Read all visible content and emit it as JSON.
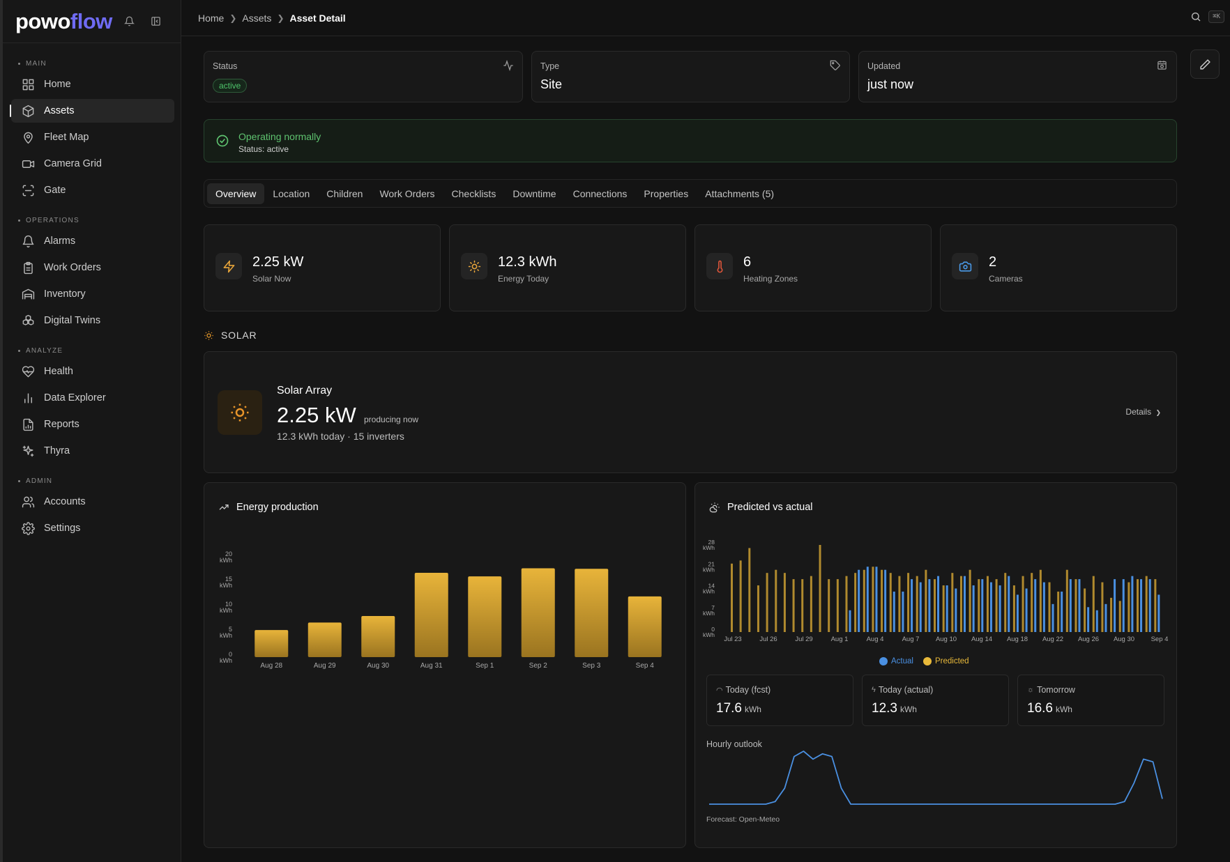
{
  "sidebar": {
    "logo_part1": "powo",
    "logo_part2": "flow",
    "sections": [
      {
        "title": "MAIN",
        "items": [
          {
            "label": "Home",
            "icon": "home-grid-icon"
          },
          {
            "label": "Assets",
            "icon": "cube-icon",
            "active": true
          },
          {
            "label": "Fleet Map",
            "icon": "map-pin-icon"
          },
          {
            "label": "Camera Grid",
            "icon": "video-icon"
          },
          {
            "label": "Gate",
            "icon": "scan-icon"
          }
        ]
      },
      {
        "title": "OPERATIONS",
        "items": [
          {
            "label": "Alarms",
            "icon": "bell-icon"
          },
          {
            "label": "Work Orders",
            "icon": "clipboard-icon"
          },
          {
            "label": "Inventory",
            "icon": "warehouse-icon"
          },
          {
            "label": "Digital Twins",
            "icon": "boxes-icon"
          }
        ]
      },
      {
        "title": "ANALYZE",
        "items": [
          {
            "label": "Health",
            "icon": "heart-pulse-icon"
          },
          {
            "label": "Data Explorer",
            "icon": "bar-chart-icon"
          },
          {
            "label": "Reports",
            "icon": "file-chart-icon"
          },
          {
            "label": "Thyra",
            "icon": "sparkles-icon"
          }
        ]
      },
      {
        "title": "ADMIN",
        "items": [
          {
            "label": "Accounts",
            "icon": "users-icon"
          },
          {
            "label": "Settings",
            "icon": "gear-icon"
          }
        ]
      }
    ]
  },
  "header": {
    "breadcrumbs": [
      "Home",
      "Assets",
      "Asset Detail"
    ],
    "shortcut": "⌘K"
  },
  "info_cards": {
    "status": {
      "label": "Status",
      "value": "active"
    },
    "type": {
      "label": "Type",
      "value": "Site"
    },
    "updated": {
      "label": "Updated",
      "value": "just now"
    }
  },
  "alert": {
    "title": "Operating normally",
    "subtitle": "Status: active"
  },
  "tabs": [
    "Overview",
    "Location",
    "Children",
    "Work Orders",
    "Checklists",
    "Downtime",
    "Connections",
    "Properties",
    "Attachments (5)"
  ],
  "stats": [
    {
      "value": "2.25 kW",
      "label": "Solar Now",
      "icon": "zap-icon",
      "color": "#e8a53a"
    },
    {
      "value": "12.3 kWh",
      "label": "Energy Today",
      "icon": "sun-icon",
      "color": "#e8a53a"
    },
    {
      "value": "6",
      "label": "Heating Zones",
      "icon": "thermometer-icon",
      "color": "#e0553a"
    },
    {
      "value": "2",
      "label": "Cameras",
      "icon": "camera-icon",
      "color": "#4a9ae8"
    }
  ],
  "solar": {
    "section_title": "SOLAR",
    "name": "Solar Array",
    "value": "2.25 kW",
    "status": "producing now",
    "sub": "12.3 kWh today · 15 inverters",
    "details": "Details"
  },
  "energy_chart": {
    "title": "Energy production"
  },
  "predicted_chart": {
    "title": "Predicted vs actual",
    "legend_actual": "Actual",
    "legend_predicted": "Predicted",
    "minis": [
      {
        "label": "Today (fcst)",
        "value": "17.6",
        "unit": "kWh"
      },
      {
        "label": "Today (actual)",
        "value": "12.3",
        "unit": "kWh"
      },
      {
        "label": "Tomorrow",
        "value": "16.6",
        "unit": "kWh"
      }
    ],
    "hourly_label": "Hourly outlook",
    "forecast_note": "Forecast: Open-Meteo"
  },
  "colors": {
    "accent": "#6f6bf3",
    "gold": "#d9a42c",
    "actual": "#4a90e2",
    "predicted": "#e8b93a",
    "ok": "#5ec26f"
  },
  "chart_data": [
    {
      "type": "bar",
      "title": "Energy production",
      "categories": [
        "Aug 28",
        "Aug 29",
        "Aug 30",
        "Aug 31",
        "Sep 1",
        "Sep 2",
        "Sep 3",
        "Sep 4"
      ],
      "values": [
        5.4,
        6.9,
        8.2,
        16.8,
        16.1,
        17.7,
        17.6,
        12.1
      ],
      "ylim": [
        0,
        20
      ],
      "yticks": [
        0,
        5,
        10,
        15,
        20
      ],
      "yunit": "kWh"
    },
    {
      "type": "bar",
      "title": "Predicted vs actual",
      "x_tick_labels": [
        "Jul 23",
        "Jul 26",
        "Jul 29",
        "Aug 1",
        "Aug 4",
        "Aug 7",
        "Aug 10",
        "Aug 14",
        "Aug 18",
        "Aug 22",
        "Aug 26",
        "Aug 30",
        "Sep 4"
      ],
      "ylim": [
        0,
        28
      ],
      "yticks": [
        0,
        7,
        14,
        21,
        28
      ],
      "yunit": "kWh",
      "series": [
        {
          "name": "Predicted",
          "values": [
            22,
            23,
            27,
            15,
            19,
            20,
            19,
            17,
            17,
            18,
            28,
            17,
            17,
            18,
            19,
            20,
            21,
            20,
            19,
            18,
            19,
            18,
            20,
            17,
            15,
            19,
            18,
            20,
            17,
            18,
            17,
            19,
            15,
            18,
            19,
            20,
            16,
            13,
            20,
            17,
            14,
            18,
            16,
            11,
            10,
            16,
            17,
            18,
            17
          ]
        },
        {
          "name": "Actual",
          "values": [
            null,
            null,
            null,
            null,
            null,
            null,
            null,
            null,
            null,
            null,
            null,
            null,
            null,
            7,
            20,
            21,
            21,
            20,
            13,
            13,
            17,
            16,
            17,
            18,
            15,
            14,
            18,
            15,
            17,
            16,
            15,
            18,
            12,
            14,
            17,
            16,
            9,
            13,
            17,
            17,
            8,
            7,
            9,
            17,
            17,
            18,
            17,
            17,
            12
          ]
        }
      ]
    },
    {
      "type": "line",
      "title": "Hourly outlook",
      "x": [
        0,
        1,
        2,
        3,
        4,
        5,
        6,
        7,
        8,
        9,
        10,
        11,
        12,
        13,
        14,
        15,
        16,
        17,
        18,
        19,
        20,
        21,
        22,
        23,
        24,
        25,
        26,
        27,
        28,
        29,
        30,
        31,
        32,
        33,
        34,
        35,
        36,
        37,
        38,
        39,
        40,
        41,
        42,
        43,
        44,
        45,
        46,
        47,
        48
      ],
      "values": [
        0,
        0,
        0,
        0,
        0,
        0,
        0,
        0.05,
        0.3,
        0.9,
        1.0,
        0.85,
        0.95,
        0.9,
        0.3,
        0,
        0,
        0,
        0,
        0,
        0,
        0,
        0,
        0,
        0,
        0,
        0,
        0,
        0,
        0,
        0,
        0,
        0,
        0,
        0,
        0,
        0,
        0,
        0,
        0,
        0,
        0,
        0,
        0,
        0.05,
        0.4,
        0.85,
        0.8,
        0.1
      ]
    }
  ]
}
